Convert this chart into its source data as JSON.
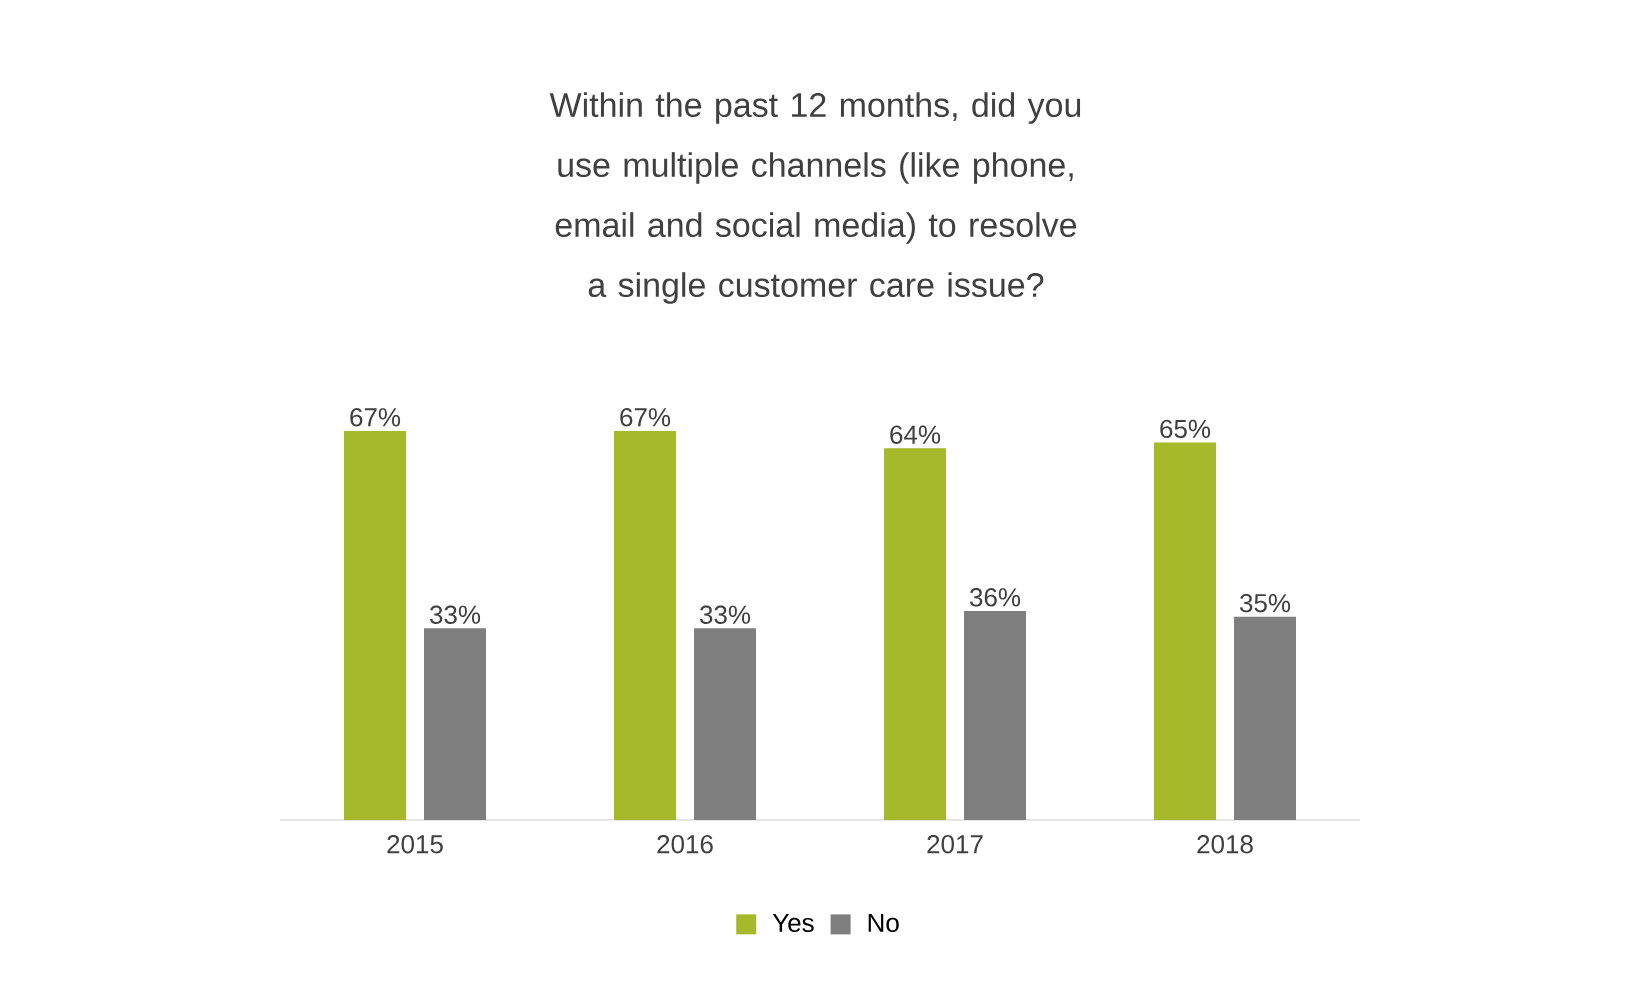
{
  "chart_data": {
    "type": "bar",
    "title": "Within the past 12 months, did you use multiple channels (like phone, email and social media) to resolve a single customer care issue?",
    "categories": [
      "2015",
      "2016",
      "2017",
      "2018"
    ],
    "series": [
      {
        "name": "Yes",
        "color": "#a5b92a",
        "values": [
          67,
          67,
          64,
          65
        ],
        "value_labels": [
          "67%",
          "67%",
          "64%",
          "65%"
        ]
      },
      {
        "name": "No",
        "color": "#7f7f7f",
        "values": [
          33,
          33,
          36,
          35
        ],
        "value_labels": [
          "33%",
          "33%",
          "36%",
          "35%"
        ]
      }
    ],
    "legend": "bottom"
  }
}
